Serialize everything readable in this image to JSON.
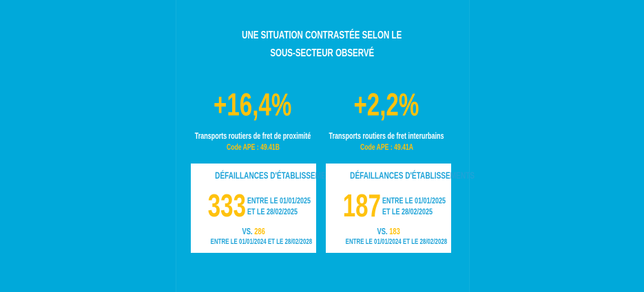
{
  "colors": {
    "background": "#00a9da",
    "accent_yellow": "#ffc20e",
    "text_blue": "#1ea3d8",
    "box": "#ffffff"
  },
  "title": {
    "line1": "UNE SITUATION CONTRASTÉE SELON LE",
    "line2": "SOUS-SECTEUR OBSERVÉ"
  },
  "sectors": [
    {
      "change": "+16,4%",
      "label": "Transports routiers de fret de proximité",
      "code": "Code APE : 49.41B",
      "box": {
        "heading": "DÉFAILLANCES D'ÉTABLISSEMENTS",
        "count": "333",
        "period_line1": "ENTRE LE 01/01/2025",
        "period_line2": "ET LE 28/02/2025",
        "vs_label": "VS.",
        "vs_value": "286",
        "vs_period": "ENTRE LE 01/01/2024 ET LE 28/02/2028"
      }
    },
    {
      "change": "+2,2%",
      "label": "Transports routiers de fret interurbains",
      "code": "Code APE : 49.41A",
      "box": {
        "heading": "DÉFAILLANCES D'ÉTABLISSEMENTS",
        "count": "187",
        "period_line1": "ENTRE LE 01/01/2025",
        "period_line2": "ET LE 28/02/2025",
        "vs_label": "VS.",
        "vs_value": "183",
        "vs_period": "ENTRE LE 01/01/2024 ET LE 28/02/2028"
      }
    }
  ]
}
